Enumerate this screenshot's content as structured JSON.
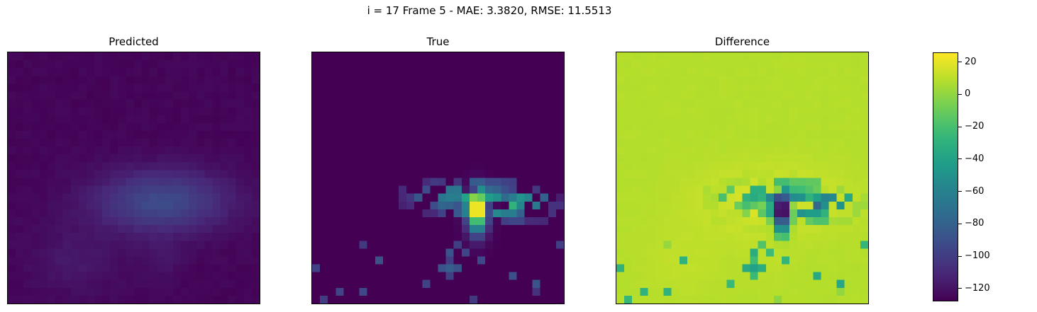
{
  "suptitle": "i = 17 Frame 5 - MAE: 3.3820, RMSE: 11.5513",
  "chart_data": [
    {
      "type": "heatmap",
      "title": "Predicted",
      "grid_size": [
        32,
        32
      ],
      "xticks": [],
      "yticks": [],
      "colormap": "viridis",
      "value_range": [
        -128,
        26
      ],
      "description_values": "mostly near background (-128); central blob around -95 to -105"
    },
    {
      "type": "heatmap",
      "title": "True",
      "grid_size": [
        32,
        32
      ],
      "xticks": [],
      "yticks": [],
      "colormap": "viridis",
      "value_range": [
        -128,
        26
      ],
      "peak_value": 20
    },
    {
      "type": "heatmap",
      "title": "Difference",
      "grid_size": [
        32,
        32
      ],
      "xticks": [],
      "yticks": [],
      "colormap": "viridis",
      "value_range": [
        -128,
        26
      ]
    }
  ],
  "colorbar": {
    "min": -128,
    "max": 26,
    "ticks": [
      "20",
      "0",
      "−20",
      "−40",
      "−60",
      "−80",
      "−100",
      "−120"
    ],
    "tick_values": [
      20,
      0,
      -20,
      -40,
      -60,
      -80,
      -100,
      -120
    ]
  },
  "colors": {
    "viridis": [
      "#440154",
      "#482878",
      "#3e4989",
      "#31688e",
      "#26828e",
      "#1f9e89",
      "#35b779",
      "#6ece58",
      "#b5de2b",
      "#fde725"
    ]
  }
}
